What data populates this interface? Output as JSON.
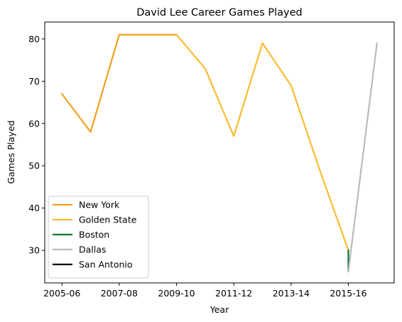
{
  "chart_data": {
    "type": "line",
    "title": "David Lee  Career Games Played",
    "xlabel": "Year",
    "ylabel": "Games Played",
    "x_tick_labels": [
      "2005-06",
      "2007-08",
      "2009-10",
      "2011-12",
      "2013-14",
      "2015-16"
    ],
    "x_tick_positions": [
      0,
      2,
      4,
      6,
      8,
      10
    ],
    "xlim": [
      -0.6,
      11.6
    ],
    "ylim": [
      22.3,
      84
    ],
    "y_ticks": [
      30,
      40,
      50,
      60,
      70,
      80
    ],
    "grid": false,
    "legend_placement": "lower-left",
    "series": [
      {
        "name": "New York",
        "color": "#f0a020",
        "points": [
          [
            0,
            67
          ],
          [
            1,
            58
          ],
          [
            2,
            81
          ],
          [
            3,
            81
          ],
          [
            4,
            81
          ]
        ]
      },
      {
        "name": "Golden State",
        "color": "#fbbb2f",
        "points": [
          [
            4,
            81
          ],
          [
            5,
            73
          ],
          [
            6,
            57
          ],
          [
            7,
            79
          ],
          [
            8,
            69
          ],
          [
            9,
            49
          ],
          [
            10,
            30
          ]
        ]
      },
      {
        "name": "Boston",
        "color": "#007a33",
        "points": [
          [
            10,
            30
          ],
          [
            10,
            25
          ]
        ]
      },
      {
        "name": "Dallas",
        "color": "#bbbbbb",
        "points": [
          [
            10,
            25
          ],
          [
            11,
            79
          ]
        ]
      },
      {
        "name": "San Antonio",
        "color": "#000000",
        "points": []
      }
    ]
  }
}
